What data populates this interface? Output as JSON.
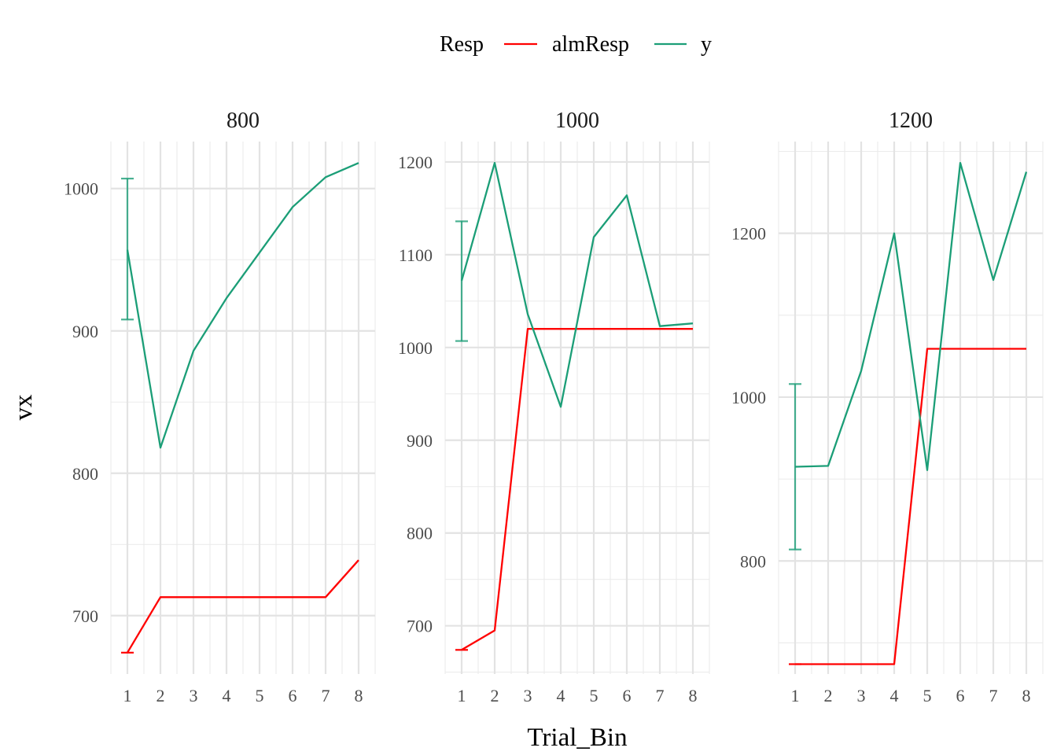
{
  "colors": {
    "almResp": "#ff0000",
    "y": "#1b9e77"
  },
  "legend": {
    "title": "Resp",
    "entries": [
      {
        "label": "almResp",
        "color": "#ff0000"
      },
      {
        "label": "y",
        "color": "#1b9e77"
      }
    ]
  },
  "chart_data": {
    "type": "line",
    "xlabel": "Trial_Bin",
    "ylabel": "vx",
    "legend_position": "top",
    "grid": true,
    "x": [
      1,
      2,
      3,
      4,
      5,
      6,
      7,
      8
    ],
    "panels": [
      {
        "label": "800",
        "xlim": [
          0.5,
          8.5
        ],
        "ylim": [
          659,
          1033
        ],
        "yticks": [
          700,
          800,
          900,
          1000
        ],
        "series": [
          {
            "name": "almResp",
            "values": [
              674,
              713,
              713,
              713,
              713,
              713,
              713,
              739
            ]
          },
          {
            "name": "y",
            "values": [
              957,
              818,
              886,
              923,
              955,
              987,
              1008,
              1018
            ]
          }
        ],
        "errorbar": {
          "series": "y",
          "x": 1,
          "low": 908,
          "high": 1007
        }
      },
      {
        "label": "1000",
        "xlim": [
          0.5,
          8.5
        ],
        "ylim": [
          648,
          1222
        ],
        "yticks": [
          700,
          800,
          900,
          1000,
          1100,
          1200
        ],
        "series": [
          {
            "name": "almResp",
            "values": [
              674,
              695,
              1020,
              1020,
              1020,
              1020,
              1020,
              1020
            ]
          },
          {
            "name": "y",
            "values": [
              1072,
              1199,
              1036,
              936,
              1119,
              1164,
              1023,
              1026
            ]
          }
        ],
        "errorbar": {
          "series": "y",
          "x": 1,
          "low": 1007,
          "high": 1136
        }
      },
      {
        "label": "1200",
        "xlim": [
          0.5,
          8.5
        ],
        "ylim": [
          662,
          1312
        ],
        "yticks": [
          800,
          1000,
          1200
        ],
        "series": [
          {
            "name": "almResp",
            "values": [
              674,
              674,
              674,
              674,
              1059,
              1059,
              1059,
              1059
            ]
          },
          {
            "name": "y",
            "values": [
              915,
              916,
              1032,
              1200,
              911,
              1286,
              1143,
              1275
            ]
          }
        ],
        "errorbar": {
          "series": "y",
          "x": 1,
          "low": 814,
          "high": 1016
        }
      }
    ]
  }
}
